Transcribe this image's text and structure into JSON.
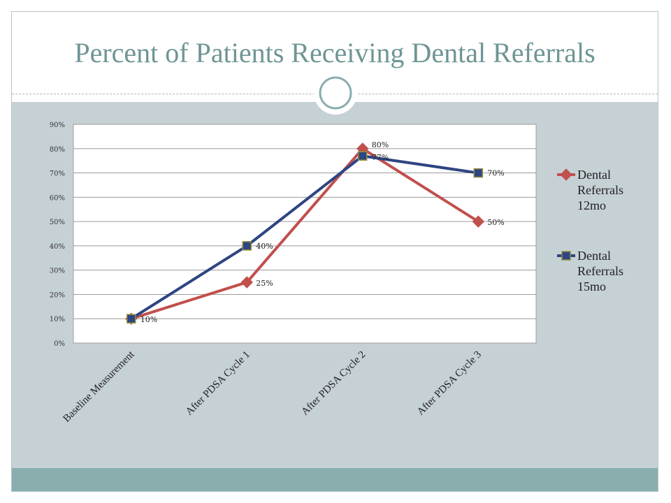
{
  "title": "Percent of Patients Receiving Dental Referrals",
  "chart_data": {
    "type": "line",
    "categories": [
      "Baseline Measurement",
      "After PDSA Cycle 1",
      "After PDSA Cycle 2",
      "After PDSA Cycle 3"
    ],
    "series": [
      {
        "name": "Dental Referrals 12mo",
        "legend_lines": [
          "Dental",
          "Referrals",
          "12mo"
        ],
        "values": [
          10,
          25,
          80,
          50
        ],
        "labels": [
          "",
          "25%",
          "80%",
          "50%"
        ],
        "color": "#c0504d",
        "marker": "diamond"
      },
      {
        "name": "Dental Referrals 15mo",
        "legend_lines": [
          "Dental",
          "Referrals",
          "15mo"
        ],
        "values": [
          10,
          40,
          77,
          70
        ],
        "labels": [
          "10%",
          "40%",
          "77%",
          "70%"
        ],
        "color": "#2e4583",
        "marker": "square"
      }
    ],
    "y_ticks": [
      "0%",
      "10%",
      "20%",
      "30%",
      "40%",
      "50%",
      "60%",
      "70%",
      "80%",
      "90%"
    ],
    "ylim": [
      0,
      90
    ],
    "grid": true,
    "legend": "right"
  }
}
